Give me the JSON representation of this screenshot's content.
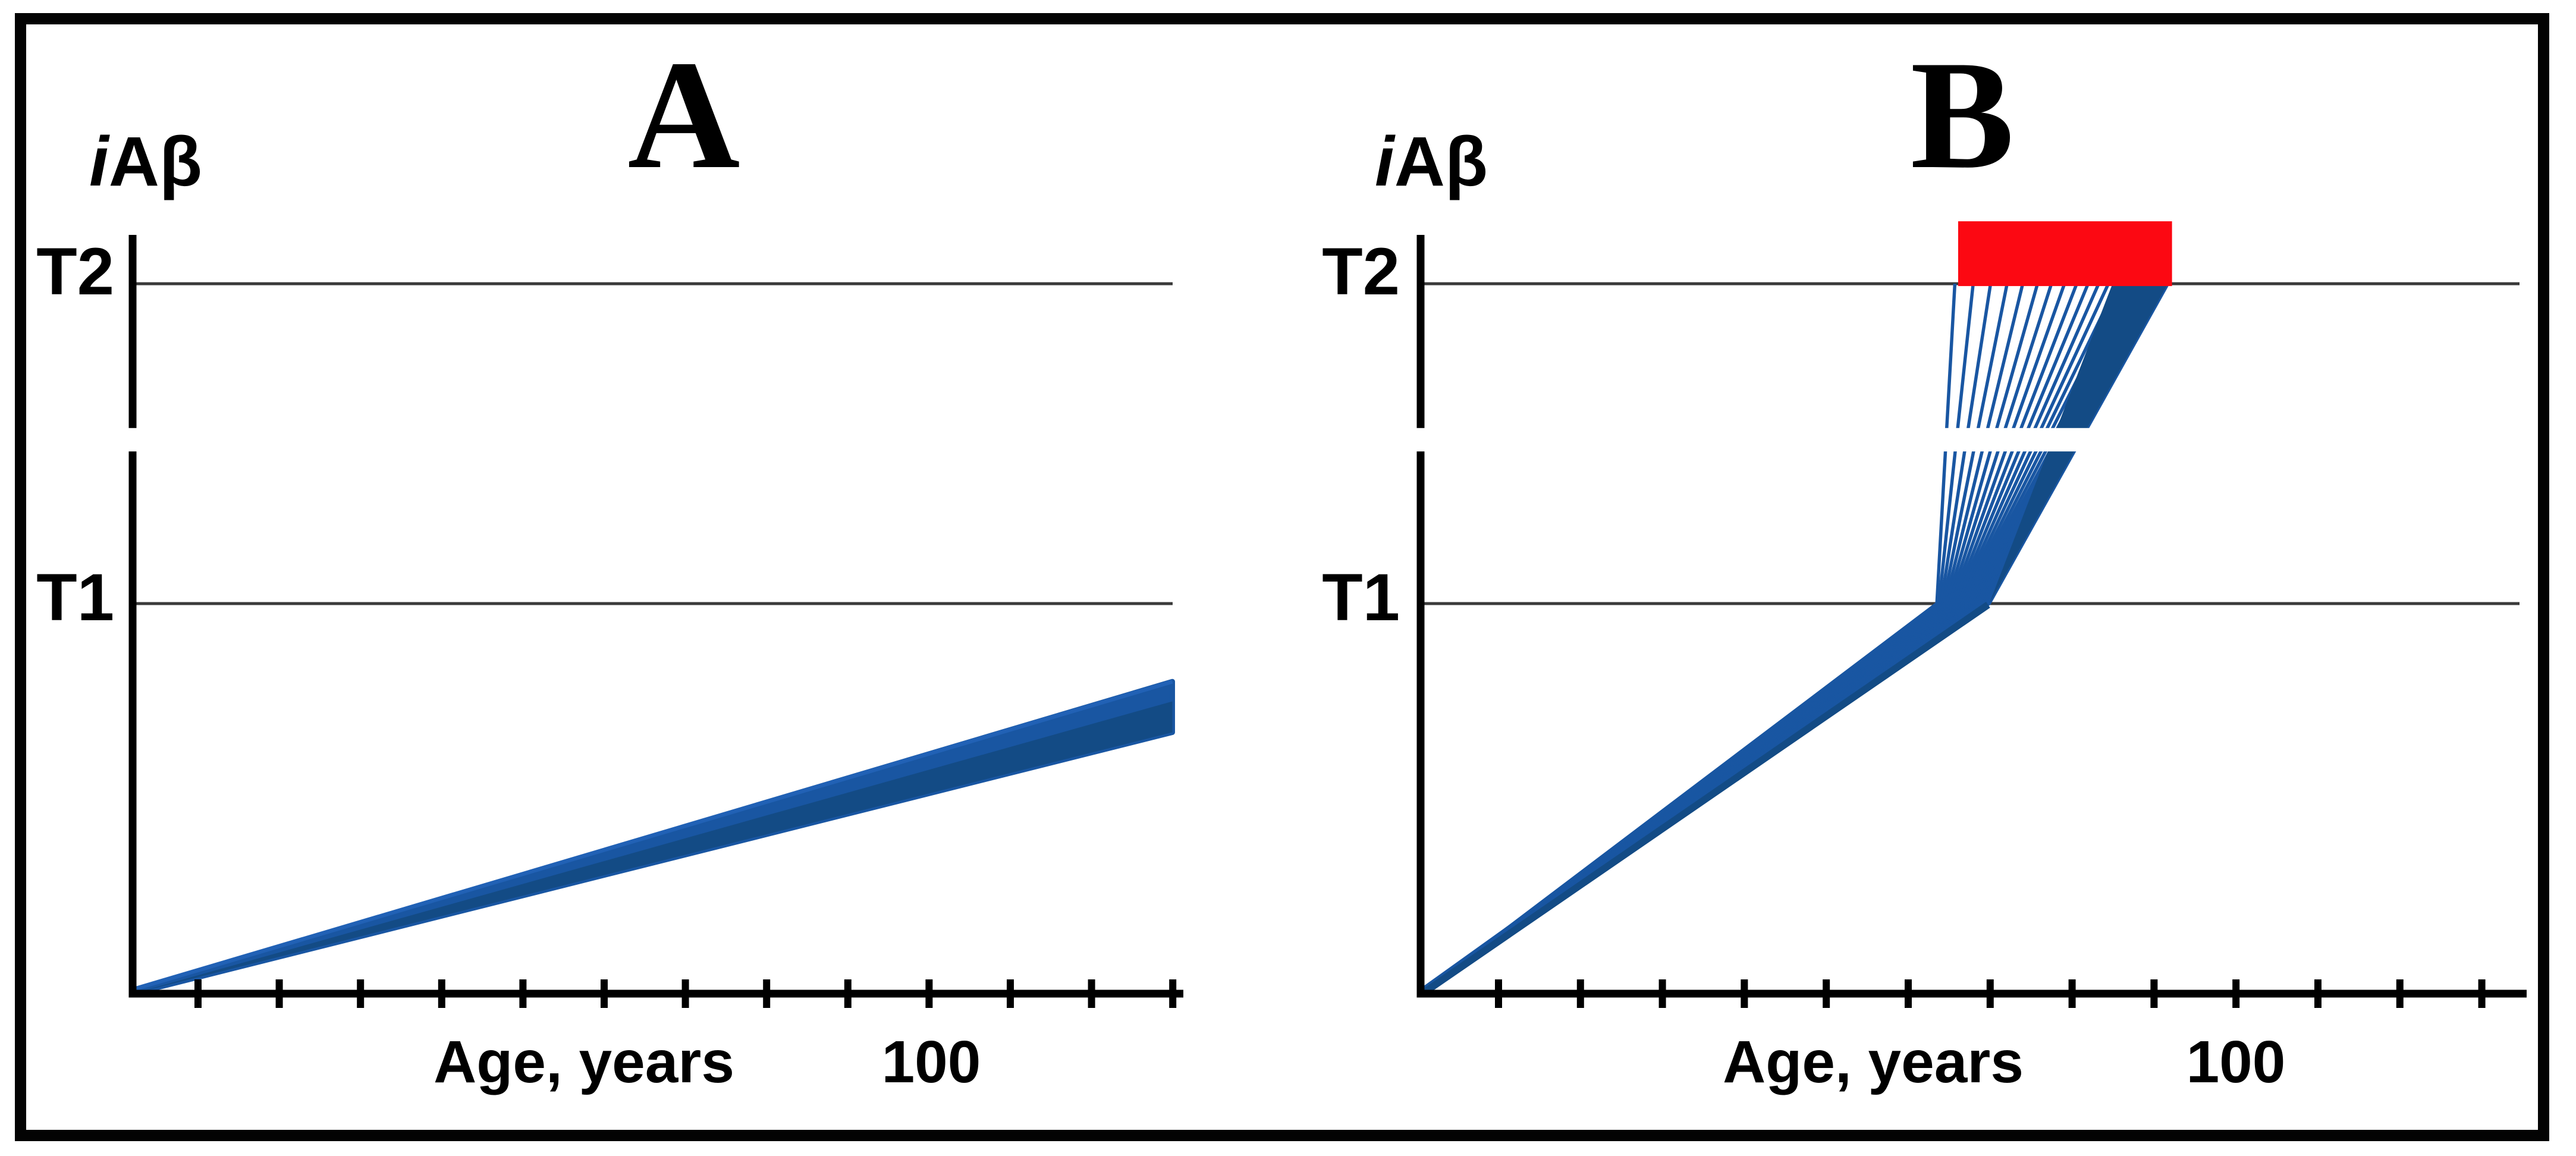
{
  "figure": {
    "panels": [
      {
        "id": "A",
        "title": "A",
        "ylabel": "iAβ",
        "ylabel_italic": "i",
        "ylabel_rest": "Aβ",
        "xlabel": "Age, years",
        "x_tick_label": "100",
        "t2_label": "T2",
        "t1_label": "T1"
      },
      {
        "id": "B",
        "title": "B",
        "ylabel": "iAβ",
        "ylabel_italic": "i",
        "ylabel_rest": "Aβ",
        "xlabel": "Age, years",
        "x_tick_label": "100",
        "t2_label": "T2",
        "t1_label": "T1"
      }
    ]
  },
  "colors": {
    "line_blue": "#1956a2",
    "dark_blue": "#134b85",
    "bright_blue": "#2161b5",
    "threshold_gray": "#3a3a3a",
    "highlight_red": "#fc0812",
    "axis_black": "#000000",
    "background": "#ffffff"
  },
  "chart_data": [
    {
      "panel": "A",
      "type": "line",
      "title": "A",
      "xlabel": "Age, years",
      "ylabel": "iAβ",
      "x_axis": {
        "tick_interval_years": 10,
        "tick_count": 13,
        "labeled_tick_value": 100,
        "labeled_tick_index": 10,
        "range_years": [
          0,
          133
        ]
      },
      "y_axis": {
        "unit": "iAβ level (arbitrary units, T1 threshold = 1)",
        "thresholds": [
          {
            "name": "T1",
            "value": 1.0
          },
          {
            "name": "T2",
            "value": 1.82
          }
        ],
        "axis_break_between": [
          1.39,
          1.45
        ]
      },
      "series_summary": {
        "n_trajectories": 26,
        "shape": "straight trajectories fanning out from the origin",
        "age_span": [
          0,
          128
        ],
        "final_value_range": [
          0.67,
          0.8
        ],
        "note": "all trajectories remain below the T1 threshold over the lifespan"
      }
    },
    {
      "panel": "B",
      "type": "line",
      "title": "B",
      "xlabel": "Age, years",
      "ylabel": "iAβ",
      "x_axis": {
        "tick_interval_years": 10,
        "tick_count": 13,
        "labeled_tick_value": 100,
        "labeled_tick_index": 10,
        "range_years": [
          0,
          133
        ]
      },
      "y_axis": {
        "unit": "iAβ level (arbitrary units, T1 threshold = 1)",
        "thresholds": [
          {
            "name": "T1",
            "value": 1.0
          },
          {
            "name": "T2",
            "value": 1.82
          }
        ],
        "axis_break_between": [
          1.39,
          1.45
        ]
      },
      "series_summary": {
        "n_trajectories": 26,
        "shape": "two-phase trajectories: linear rise from origin to T1, then steep second phase from T1 up to T2",
        "t1_crossing_age_range": [
          63,
          69.4
        ],
        "t2_crossing_age_range": [
          65.2,
          91.2
        ],
        "t2_crossing_distribution": "crossings become denser toward older ages (right side of fan is solid)"
      },
      "highlight_rect": {
        "color": "#fc0812",
        "age_range": [
          65.6,
          91.7
        ],
        "value_range": [
          1.82,
          1.98
        ],
        "position": "sits on top of the T2 threshold line spanning the T2-crossing age window"
      }
    }
  ]
}
